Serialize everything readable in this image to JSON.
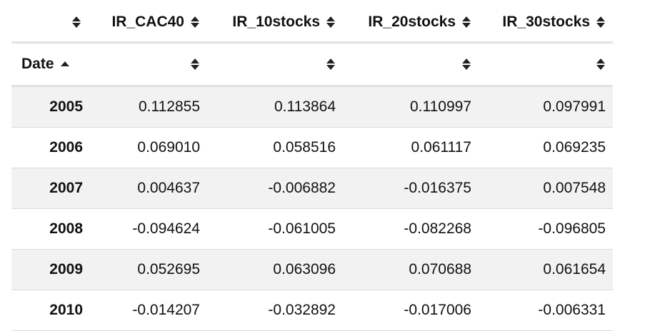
{
  "table": {
    "header_columns": [
      "",
      "IR_CAC40",
      "IR_10stocks",
      "IR_20stocks",
      "IR_30stocks"
    ],
    "filter_row_label": "Date",
    "rows": [
      {
        "date": "2005",
        "values": [
          "0.112855",
          "0.113864",
          "0.110997",
          "0.097991"
        ]
      },
      {
        "date": "2006",
        "values": [
          "0.069010",
          "0.058516",
          "0.061117",
          "0.069235"
        ]
      },
      {
        "date": "2007",
        "values": [
          "0.004637",
          "-0.006882",
          "-0.016375",
          "0.007548"
        ]
      },
      {
        "date": "2008",
        "values": [
          "-0.094624",
          "-0.061005",
          "-0.082268",
          "-0.096805"
        ]
      },
      {
        "date": "2009",
        "values": [
          "0.052695",
          "0.063096",
          "0.070688",
          "0.061654"
        ]
      },
      {
        "date": "2010",
        "values": [
          "-0.014207",
          "-0.032892",
          "-0.017006",
          "-0.006331"
        ]
      }
    ]
  },
  "colors": {
    "striped_row": "#f2f2f2",
    "header_rule": "#e2e2e2"
  },
  "icons": {
    "sort": "sort-both-icon",
    "sorted": "sort-asc-icon"
  }
}
